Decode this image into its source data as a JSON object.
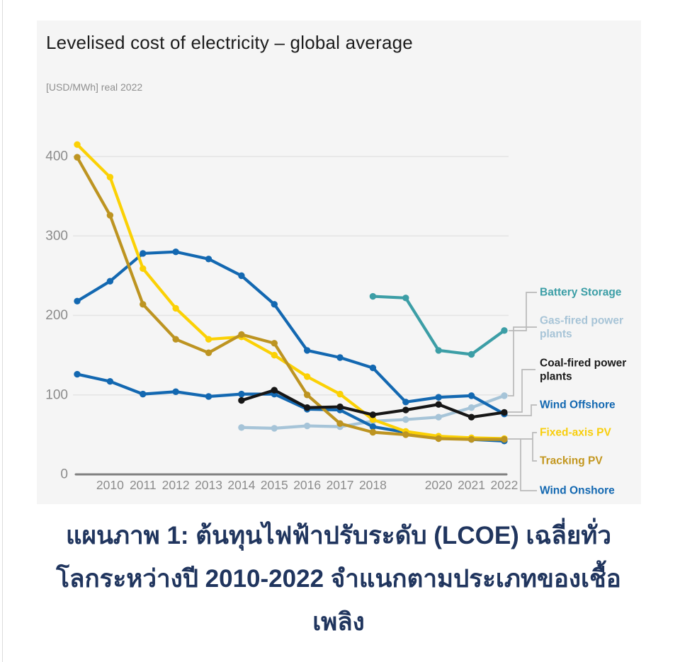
{
  "page": {
    "caption": {
      "lines": [
        "แผนภาพ 1: ต้นทุนไฟฟ้าปรับระดับ (LCOE) เฉลี่ยทั่ว",
        "โลกระหว่างปี 2010-2022 จำแนกตามประเภทของเชื้อ",
        "เพลิง"
      ],
      "full_text": "แผนภาพ 1: ต้นทุนไฟฟ้าปรับระดับ (LCOE) เฉลี่ยทั่วโลกระหว่างปี 2010-2022 จำแนกตามประเภทของเชื้อเพลิง",
      "color": "#20355e"
    }
  },
  "chart": {
    "title": "Levelised cost of electricity – global average",
    "subtitle": "[USD/MWh] real 2022"
  },
  "chart_data": {
    "type": "line",
    "title": "Levelised cost of electricity – global average",
    "ylabel": "[USD/MWh] real 2022",
    "x": [
      2009,
      2010,
      2011,
      2012,
      2013,
      2014,
      2015,
      2016,
      2017,
      2018,
      2019,
      2020,
      2021,
      2022
    ],
    "x_tick_labels": [
      "",
      "2010",
      "2011",
      "2012",
      "2013",
      "2014",
      "2015",
      "2016",
      "2017",
      "2018",
      "",
      "2020",
      "2021",
      "2022"
    ],
    "y_ticks": [
      0,
      100,
      200,
      300,
      400
    ],
    "ylim": [
      0,
      430
    ],
    "grid": "horizontal-light",
    "legend_position": "right-annotated-with-connectors",
    "colors": {
      "axis": "#7f7f7f",
      "gridline": "#e4e4e4",
      "tick_text": "#8c8c8c",
      "connector": "#b9b9b9",
      "card_background": "#f5f5f5"
    },
    "series": [
      {
        "id": "fixed_axis_pv",
        "name": "Fixed-axis PV",
        "color": "#fbd105",
        "values": [
          415,
          374,
          259,
          209,
          170,
          173,
          150,
          123,
          101,
          69,
          54,
          48,
          46,
          45
        ]
      },
      {
        "id": "tracking_pv",
        "name": "Tracking PV",
        "color": "#bd9421",
        "values": [
          399,
          326,
          214,
          170,
          153,
          176,
          165,
          100,
          64,
          53,
          50,
          45,
          44,
          44
        ]
      },
      {
        "id": "wind_offshore",
        "name": "Wind Offshore",
        "color": "#1368b1",
        "values": [
          218,
          243,
          278,
          280,
          271,
          250,
          214,
          156,
          147,
          134,
          91,
          97,
          99,
          76
        ]
      },
      {
        "id": "wind_onshore",
        "name": "Wind Onshore",
        "color": "#1368b1",
        "values": [
          126,
          117,
          101,
          104,
          98,
          101,
          101,
          82,
          81,
          60,
          53,
          47,
          44,
          42
        ]
      },
      {
        "id": "coal_fired",
        "name": "Coal-fired power plants",
        "color": "#161616",
        "values": [
          null,
          null,
          null,
          null,
          null,
          93,
          106,
          84,
          85,
          75,
          81,
          88,
          72,
          78
        ]
      },
      {
        "id": "gas_fired",
        "name": "Gas-fired power plants",
        "color": "#a6c4d8",
        "values": [
          null,
          null,
          null,
          null,
          null,
          59,
          58,
          61,
          60,
          67,
          69,
          72,
          84,
          99
        ]
      },
      {
        "id": "battery_storage",
        "name": "Battery Storage",
        "color": "#3c9ea6",
        "values": [
          null,
          null,
          null,
          null,
          null,
          null,
          null,
          null,
          null,
          224,
          222,
          156,
          151,
          181
        ]
      }
    ],
    "legend": [
      {
        "series": "battery_storage",
        "lines": [
          "Battery Storage"
        ],
        "color": "#3c9ea6"
      },
      {
        "series": "gas_fired",
        "lines": [
          "Gas-fired power",
          "plants"
        ],
        "color": "#a7c4d7"
      },
      {
        "series": "coal_fired",
        "lines": [
          "Coal-fired power",
          "plants"
        ],
        "color": "#1a1a1a"
      },
      {
        "series": "wind_offshore",
        "lines": [
          "Wind Offshore"
        ],
        "color": "#1368b1"
      },
      {
        "series": "fixed_axis_pv",
        "lines": [
          "Fixed-axis PV"
        ],
        "color": "#f8ce0d"
      },
      {
        "series": "tracking_pv",
        "lines": [
          "Tracking PV"
        ],
        "color": "#c3971f"
      },
      {
        "series": "wind_onshore",
        "lines": [
          "Wind Onshore"
        ],
        "color": "#1368b1"
      }
    ]
  }
}
